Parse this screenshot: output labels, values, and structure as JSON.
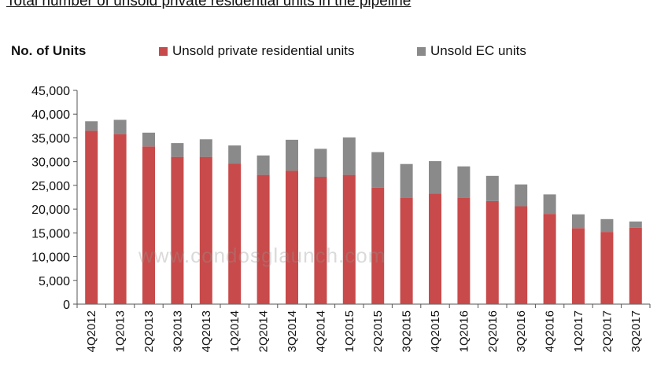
{
  "chart_data": {
    "type": "bar",
    "stacked": true,
    "title": "Total number of unsold private residential units in the pipeline",
    "ylabel": "No. of Units",
    "xlabel": "",
    "ylim": [
      0,
      45000
    ],
    "yticks": [
      "0",
      "5,000",
      "10,000",
      "15,000",
      "20,000",
      "25,000",
      "30,000",
      "35,000",
      "40,000",
      "45,000"
    ],
    "categories": [
      "4Q2012",
      "1Q2013",
      "2Q2013",
      "3Q2013",
      "4Q2013",
      "1Q2014",
      "2Q2014",
      "3Q2014",
      "4Q2014",
      "1Q2015",
      "2Q2015",
      "3Q2015",
      "4Q2015",
      "1Q2016",
      "2Q2016",
      "3Q2016",
      "4Q2016",
      "1Q2017",
      "2Q2017",
      "3Q2017"
    ],
    "series": [
      {
        "name": "Unsold private residential units",
        "color": "#c84a4a",
        "values": [
          36500,
          35800,
          33200,
          31000,
          31000,
          29600,
          27200,
          28100,
          26800,
          27200,
          24500,
          22400,
          23300,
          22400,
          21700,
          20600,
          19000,
          16000,
          15200,
          16100
        ]
      },
      {
        "name": "Unsold EC units",
        "color": "#8a8a8a",
        "values": [
          2000,
          3000,
          2900,
          2900,
          3700,
          3800,
          4100,
          6500,
          5900,
          7900,
          7500,
          7100,
          6800,
          6600,
          5300,
          4600,
          4100,
          2900,
          2700,
          1300
        ]
      }
    ],
    "legend": "top",
    "grid": false,
    "watermark": "www.condosglaunch.com"
  }
}
